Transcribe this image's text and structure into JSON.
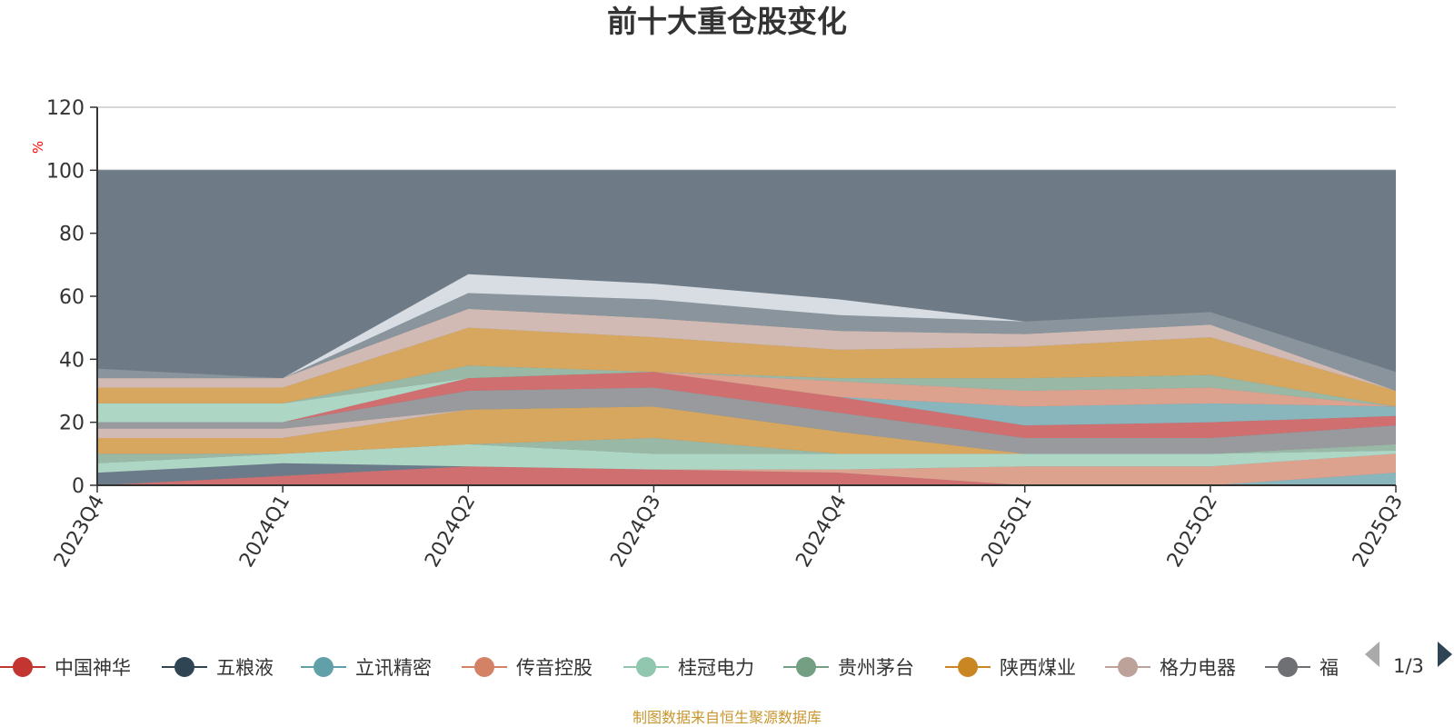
{
  "title": "前十大重仓股变化",
  "y_unit": "%",
  "source": "制图数据来自恒生聚源数据库",
  "legend_page": "1/3",
  "legend": [
    {
      "name": "中国神华",
      "color": "#c23531"
    },
    {
      "name": "五粮液",
      "color": "#2f4554"
    },
    {
      "name": "立讯精密",
      "color": "#61a0a8"
    },
    {
      "name": "传音控股",
      "color": "#d48265"
    },
    {
      "name": "桂冠电力",
      "color": "#91c7ae"
    },
    {
      "name": "贵州茅台",
      "color": "#749f83"
    },
    {
      "name": "陕西煤业",
      "color": "#ca8622"
    },
    {
      "name": "格力电器",
      "color": "#bda29a"
    },
    {
      "name": "福",
      "color": "#6e7074"
    }
  ],
  "chart_data": {
    "type": "area",
    "stacked": true,
    "title": "前十大重仓股变化",
    "ylabel": "%",
    "ylim": [
      0,
      120
    ],
    "yticks": [
      0,
      20,
      40,
      60,
      80,
      100,
      120
    ],
    "categories": [
      "2023Q4",
      "2024Q1",
      "2024Q2",
      "2024Q3",
      "2024Q4",
      "2025Q1",
      "2025Q2",
      "2025Q3"
    ],
    "other_band": {
      "color": "#6e7b87",
      "values": [
        100,
        100,
        100,
        100,
        100,
        100,
        100,
        100
      ]
    },
    "grid": true,
    "layers": [
      {
        "color": "#d46f6f",
        "values": [
          0,
          3,
          6,
          5,
          4,
          0,
          0,
          0
        ]
      },
      {
        "color": "#6a7b8a",
        "values": [
          4,
          4,
          0,
          0,
          0,
          0,
          0,
          0
        ]
      },
      {
        "color": "#8ab8c0",
        "values": [
          0,
          0,
          0,
          0,
          0,
          0,
          0,
          4
        ]
      },
      {
        "color": "#e3a48e",
        "values": [
          0,
          0,
          0,
          0,
          1,
          6,
          6,
          6
        ]
      },
      {
        "color": "#b1dbc8",
        "values": [
          3,
          3,
          7,
          5,
          5,
          4,
          4,
          1
        ]
      },
      {
        "color": "#9bbda8",
        "values": [
          3,
          0,
          0,
          5,
          0,
          0,
          0,
          2
        ]
      },
      {
        "color": "#dcaa5e",
        "values": [
          5,
          5,
          11,
          10,
          7,
          0,
          0,
          0
        ]
      },
      {
        "color": "#d7beb6",
        "values": [
          3,
          3,
          0,
          0,
          0,
          0,
          0,
          0
        ]
      },
      {
        "color": "#9a9c9f",
        "values": [
          2,
          2,
          6,
          6,
          6,
          5,
          5,
          6
        ]
      },
      {
        "color": "#d46f6f",
        "values": [
          0,
          0,
          4,
          5,
          5,
          4,
          5,
          3
        ]
      },
      {
        "color": "#8ab8c0",
        "values": [
          0,
          0,
          0,
          0,
          0,
          6,
          6,
          3
        ]
      },
      {
        "color": "#e3a48e",
        "values": [
          0,
          0,
          0,
          0,
          5,
          5,
          5,
          0
        ]
      },
      {
        "color": "#b1dbc8",
        "values": [
          6,
          6,
          0,
          0,
          0,
          0,
          0,
          0
        ]
      },
      {
        "color": "#9bbda8",
        "values": [
          0,
          0,
          4,
          0,
          1,
          4,
          4,
          0
        ]
      },
      {
        "color": "#dcaa5e",
        "values": [
          5,
          5,
          12,
          11,
          9,
          10,
          12,
          5
        ]
      },
      {
        "color": "#d7beb6",
        "values": [
          3,
          3,
          6,
          6,
          6,
          4,
          4,
          0
        ]
      },
      {
        "color": "#8a969d",
        "values": [
          3,
          0,
          5,
          6,
          5,
          4,
          4,
          6
        ]
      },
      {
        "color": "#dde2e8",
        "values": [
          0,
          0,
          6,
          5,
          5,
          0,
          0,
          0
        ]
      }
    ]
  }
}
